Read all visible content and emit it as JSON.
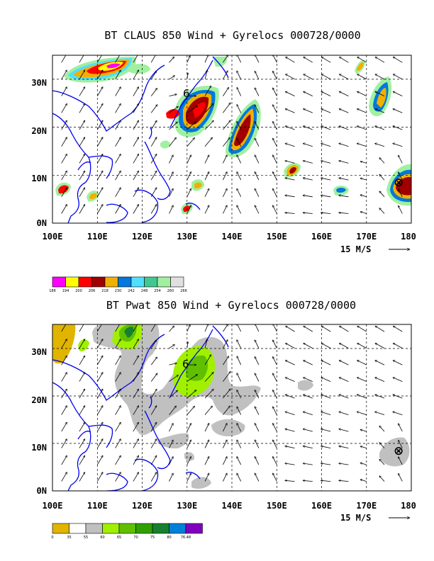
{
  "chart_data": [
    {
      "type": "map",
      "title": "BT CLAUS 850 Wind + Gyrelocs 000728/0000",
      "lon_range": [
        100,
        180
      ],
      "lat_range": [
        0,
        35
      ],
      "x_ticks": [
        "100E",
        "110E",
        "120E",
        "130E",
        "140E",
        "150E",
        "160E",
        "170E",
        "180"
      ],
      "y_ticks": [
        "0N",
        "10N",
        "20N",
        "30N"
      ],
      "grid": true,
      "vector_reference": "15 M/S",
      "legend": {
        "labels": [
          "186",
          "194",
          "200",
          "206",
          "218",
          "230",
          "242",
          "248",
          "254",
          "260",
          "266"
        ],
        "colors": [
          "#ff00ff",
          "#ffff00",
          "#ff0000",
          "#a00000",
          "#f0b000",
          "#0078dc",
          "#50e0ff",
          "#40c890",
          "#a0f0a0",
          "#e0e0e0"
        ]
      },
      "gyre_markers": [
        {
          "symbol": "6",
          "lon": 131,
          "lat": 27.7
        },
        {
          "symbol": "⊗",
          "lon": 176.6,
          "lat": 8.9
        }
      ],
      "shaded_regions": [
        {
          "lon": 115,
          "lat": 33,
          "level": "<194"
        },
        {
          "lon": 131.5,
          "lat": 23,
          "level": "<206"
        },
        {
          "lon": 143.5,
          "lat": 18.5,
          "level": "<206"
        },
        {
          "lon": 177.5,
          "lat": 8,
          "level": "<206"
        },
        {
          "lon": 172,
          "lat": 26.5,
          "level": "<230"
        },
        {
          "lon": 154,
          "lat": 11.5,
          "level": "<206"
        }
      ]
    },
    {
      "type": "map",
      "title": "BT Pwat 850 Wind + Gyrelocs 000728/0000",
      "lon_range": [
        100,
        180
      ],
      "lat_range": [
        0,
        35
      ],
      "x_ticks": [
        "100E",
        "110E",
        "120E",
        "130E",
        "140E",
        "150E",
        "160E",
        "170E",
        "180"
      ],
      "y_ticks": [
        "0N",
        "10N",
        "20N",
        "30N"
      ],
      "grid": true,
      "vector_reference": "15 M/S",
      "legend": {
        "labels": [
          "0",
          "35",
          "55",
          "60",
          "65",
          "70",
          "75",
          "80",
          "76.48"
        ],
        "colors": [
          "#e0b400",
          "#ffffff",
          "#c0c0c0",
          "#a0f000",
          "#60c000",
          "#30a000",
          "#168030",
          "#0080d8",
          "#8000c0"
        ]
      },
      "gyre_markers": [
        {
          "symbol": "6",
          "lon": 131,
          "lat": 27.7
        },
        {
          "symbol": "⊗",
          "lon": 176.6,
          "lat": 9
        }
      ],
      "shaded_regions": [
        {
          "lon": 115,
          "lat": 32,
          "level": ">=65"
        },
        {
          "lon": 133,
          "lat": 26,
          "level": ">=65"
        },
        {
          "lon": 102,
          "lat": 33,
          "level": "<35"
        }
      ]
    }
  ]
}
